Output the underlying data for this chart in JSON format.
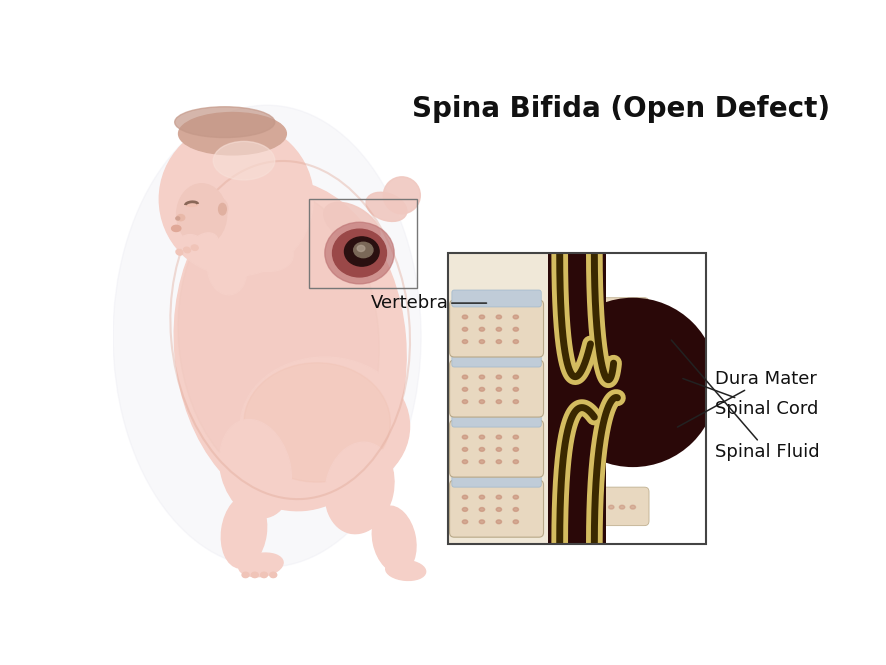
{
  "title": "Spina Bifida (Open Defect)",
  "title_fontsize": 20,
  "title_fontweight": "bold",
  "bg_color": "#ffffff",
  "labels": {
    "vertebra": "Vertebra",
    "dura_mater": "Dura Mater",
    "spinal_cord": "Spinal Cord",
    "spinal_fluid": "Spinal Fluid"
  },
  "label_fontsize": 13,
  "colors": {
    "skin_light": "#f5d0c8",
    "skin_medium": "#edbeaa",
    "vertebra_body": "#e8d8c0",
    "vertebra_spots": "#c8907a",
    "vertebra_disc": "#c0ccd8",
    "spine_pink": "#f0c8d0",
    "spine_pink2": "#e8b8c4",
    "dura_dark_brown": "#2a0808",
    "dura_medium": "#3d1010",
    "spinal_cord_gold": "#c0a840",
    "spinal_cord_gold2": "#d4bc60",
    "spinal_cord_inner": "#6b5010",
    "spinal_fluid_dark": "#1a0404",
    "vertebra_process": "#e0ceb0",
    "arrow_color": "#222222",
    "box_border": "#444444"
  }
}
